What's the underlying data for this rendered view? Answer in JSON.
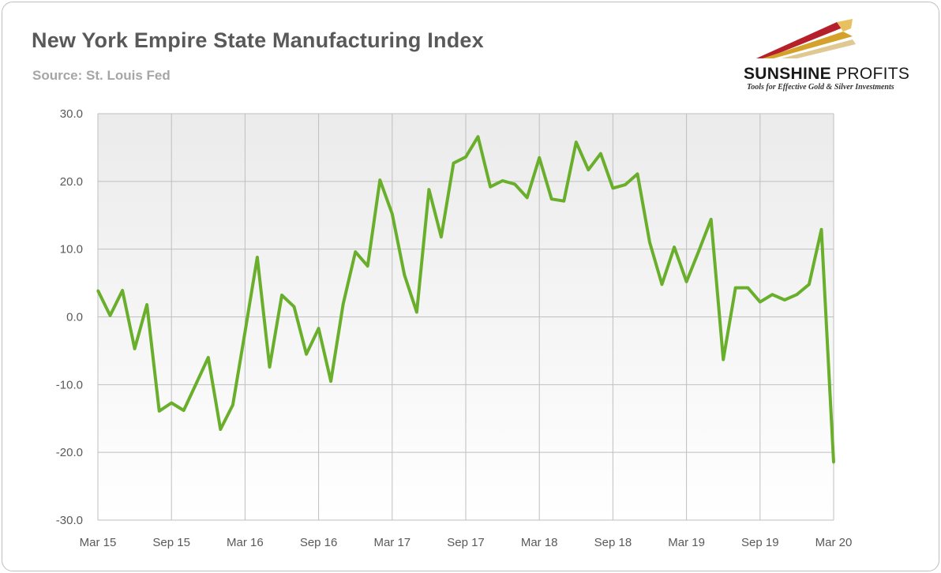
{
  "header": {
    "title": "New York Empire State Manufacturing Index",
    "subtitle": "Source: St. Louis Fed"
  },
  "logo": {
    "name_bold": "SUNSHINE",
    "name_light": "PROFITS",
    "tagline": "Tools for Effective Gold & Silver Investments"
  },
  "colors": {
    "line": "#6aaf2c",
    "grid": "#bfbfbf",
    "plot_bg_top": "#ececec",
    "plot_bg_bottom": "#ffffff",
    "logo_red": "#b5202a",
    "logo_gold": "#d4a22a"
  },
  "chart_data": {
    "type": "line",
    "title": "New York Empire State Manufacturing Index",
    "xlabel": "",
    "ylabel": "",
    "ylim": [
      -30,
      30
    ],
    "y_ticks": [
      "30.0",
      "20.0",
      "10.0",
      "0.0",
      "-10.0",
      "-20.0",
      "-30.0"
    ],
    "y_tick_values": [
      30,
      20,
      10,
      0,
      -10,
      -20,
      -30
    ],
    "x_tick_labels": [
      "Mar 15",
      "Sep 15",
      "Mar 16",
      "Sep 16",
      "Mar 17",
      "Sep 17",
      "Mar 18",
      "Sep 18",
      "Mar 19",
      "Sep 19",
      "Mar 20"
    ],
    "x_tick_index": [
      0,
      6,
      12,
      18,
      24,
      30,
      36,
      42,
      48,
      54,
      60
    ],
    "grid": true,
    "series": [
      {
        "name": "Empire State Manufacturing Index",
        "values": [
          3.9,
          0.2,
          3.9,
          -4.7,
          1.8,
          -13.9,
          -12.7,
          -13.8,
          -9.9,
          -6.0,
          -16.6,
          -13.0,
          -2.2,
          8.8,
          -7.4,
          3.2,
          1.5,
          -5.5,
          -1.7,
          -9.5,
          1.9,
          9.6,
          7.5,
          20.2,
          15.2,
          6.2,
          0.7,
          18.8,
          11.8,
          22.7,
          23.6,
          26.6,
          19.2,
          20.1,
          19.6,
          17.6,
          23.5,
          17.4,
          17.1,
          25.8,
          21.7,
          24.1,
          19.0,
          19.5,
          21.1,
          11.0,
          4.8,
          10.3,
          5.2,
          9.7,
          14.4,
          -6.3,
          4.3,
          4.3,
          2.2,
          3.3,
          2.5,
          3.3,
          4.8,
          12.9,
          -21.5
        ]
      }
    ]
  }
}
